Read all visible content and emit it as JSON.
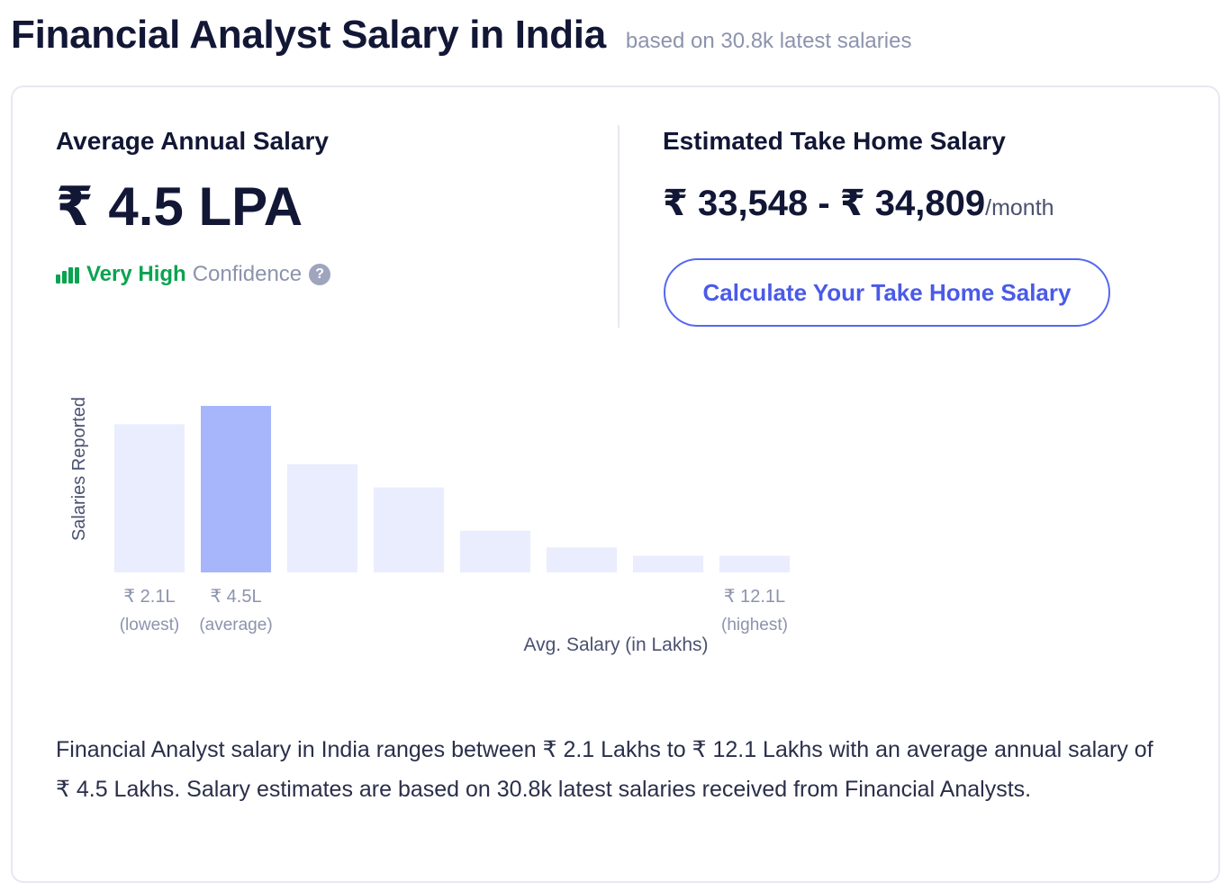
{
  "header": {
    "title": "Financial Analyst Salary in India",
    "subtitle": "based on 30.8k latest salaries"
  },
  "average": {
    "label": "Average Annual Salary",
    "value": "₹ 4.5 LPA",
    "confidence_level": "Very High",
    "confidence_label": "Confidence",
    "help_symbol": "?"
  },
  "take_home": {
    "label": "Estimated Take Home Salary",
    "range": "₹ 33,548 - ₹ 34,809",
    "unit": "/month",
    "button_label": "Calculate Your Take Home Salary"
  },
  "colors": {
    "bar": "#e9edfd",
    "bar_highlight": "#a7b5fb",
    "confidence": "#0aa350",
    "accent": "#5468f0"
  },
  "chart_data": {
    "type": "bar",
    "ylabel": "Salaries Reported",
    "xlabel": "Avg. Salary (in Lakhs)",
    "values": [
      0.89,
      1.0,
      0.65,
      0.51,
      0.25,
      0.15,
      0.1,
      0.1
    ],
    "highlight_index": 1,
    "ticks": [
      {
        "index": 0,
        "value": "₹ 2.1L",
        "note": "(lowest)"
      },
      {
        "index": 1,
        "value": "₹ 4.5L",
        "note": "(average)"
      },
      {
        "index": 7,
        "value": "₹ 12.1L",
        "note": "(highest)"
      }
    ]
  },
  "description": "Financial Analyst salary in India ranges between ₹ 2.1 Lakhs to ₹ 12.1 Lakhs with an average annual salary of ₹ 4.5 Lakhs. Salary estimates are based on 30.8k latest salaries received from Financial Analysts."
}
